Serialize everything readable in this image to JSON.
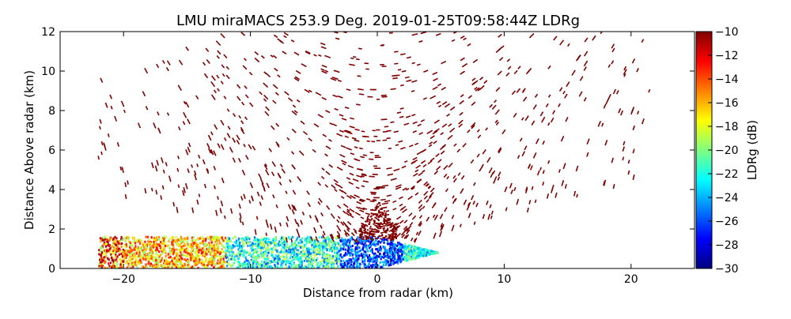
{
  "chart_data": {
    "type": "heatmap",
    "title": "LMU miraMACS 253.9 Deg. 2019-01-25T09:58:44Z  LDRg",
    "xlabel": "Distance from radar (km)",
    "ylabel": "Distance Above radar  (km)",
    "xlim": [
      -25,
      25
    ],
    "ylim": [
      0,
      12
    ],
    "x_ticks": [
      -20,
      -10,
      0,
      10,
      20
    ],
    "x_tick_labels": [
      "−20",
      "−10",
      "0",
      "10",
      "20"
    ],
    "y_ticks": [
      0,
      2,
      4,
      6,
      8,
      10,
      12
    ],
    "y_tick_labels": [
      "0",
      "2",
      "4",
      "6",
      "8",
      "10",
      "12"
    ],
    "grid": false,
    "colorbar": {
      "label": "LDRg (dB)",
      "range": [
        -30,
        -10
      ],
      "ticks": [
        -30,
        -28,
        -26,
        -24,
        -22,
        -20,
        -18,
        -16,
        -14,
        -12,
        -10
      ],
      "tick_labels": [
        "−30",
        "−28",
        "−26",
        "−24",
        "−22",
        "−20",
        "−18",
        "−16",
        "−14",
        "−12",
        "−10"
      ],
      "colormap": "jet"
    },
    "scan": {
      "sector_left_km": [
        -22,
        0
      ],
      "sector_right_km": [
        0,
        21.5
      ],
      "low_layer_top_km": 1.6,
      "low_layer_ldr_left_db": -17,
      "low_layer_ldr_center_db": -26,
      "low_layer_ldr_right_db": -22,
      "upper_ldr_db": -10,
      "upper_max_height_km": 12
    }
  }
}
